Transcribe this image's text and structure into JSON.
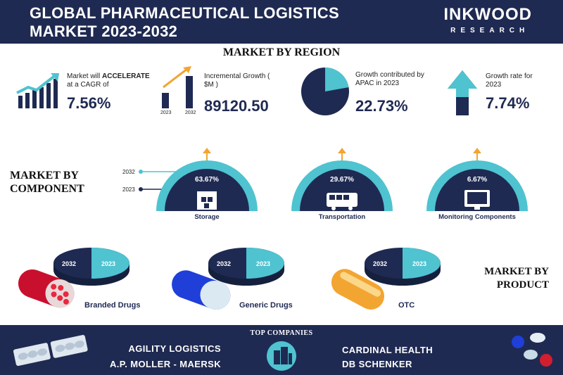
{
  "header": {
    "title_line1": "GLOBAL PHARMACEUTICAL LOGISTICS",
    "title_line2": "MARKET 2023-2032",
    "brand_name": "INKWOOD",
    "brand_sub": "RESEARCH"
  },
  "region": {
    "heading": "MARKET BY REGION",
    "stats": [
      {
        "label_pre": "Market will ",
        "label_bold": "ACCELERATE",
        "label_post": "at a CAGR of",
        "value": "7.56%",
        "icon": "rising-bar-chart-icon"
      },
      {
        "label": "Incremental Growth ( $M )",
        "value": "89120.50",
        "icon": "growth-bars-icon",
        "year_a": "2023",
        "year_b": "2032"
      },
      {
        "label": "Growth contributed by APAC in 2023",
        "value": "22.73%",
        "icon": "pie-chart-icon"
      },
      {
        "label": "Growth rate for 2023",
        "value": "7.74%",
        "icon": "up-arrow-icon"
      }
    ]
  },
  "component": {
    "heading_line1": "MARKET BY",
    "heading_line2": "COMPONENT",
    "legend_2032": "2032",
    "legend_2023": "2023",
    "items": [
      {
        "name": "Storage",
        "pct": "63.67%",
        "icon": "warehouse-icon"
      },
      {
        "name": "Transportation",
        "pct": "29.67%",
        "icon": "bus-icon"
      },
      {
        "name": "Monitoring Components",
        "pct": "6.67%",
        "icon": "monitor-icon"
      }
    ]
  },
  "product": {
    "heading_line1": "MARKET BY",
    "heading_line2": "PRODUCT",
    "items": [
      {
        "name": "Branded Drugs",
        "year_a": "2032",
        "year_b": "2023",
        "icon": "red-capsule-icon"
      },
      {
        "name": "Generic Drugs",
        "year_a": "2032",
        "year_b": "2023",
        "icon": "blue-capsule-icon"
      },
      {
        "name": "OTC",
        "year_a": "2032",
        "year_b": "2023",
        "icon": "yellow-capsule-icon"
      }
    ]
  },
  "footer": {
    "title": "TOP COMPANIES",
    "companies": [
      "AGILITY LOGISTICS",
      "A.P. MOLLER - MAERSK",
      "CARDINAL HEALTH",
      "DB SCHENKER"
    ]
  },
  "colors": {
    "navy": "#1f2a52",
    "teal": "#4fc3d0",
    "orange": "#f2a531"
  }
}
